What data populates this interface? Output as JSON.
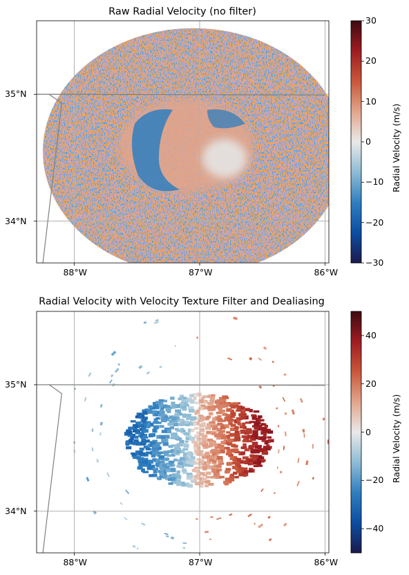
{
  "chart_data": [
    {
      "type": "heatmap",
      "title": "Raw Radial Velocity (no filter)",
      "x_ticks": [
        "88°W",
        "87°W",
        "86°W"
      ],
      "y_ticks": [
        "35°N",
        "34°N"
      ],
      "x_tick_values": [
        -88,
        -87,
        -86
      ],
      "y_tick_values": [
        35,
        34
      ],
      "xlim": [
        -88.3,
        -85.97
      ],
      "ylim": [
        33.67,
        35.58
      ],
      "colorbar": {
        "label": "Radial Velocity (m/s)",
        "range": [
          -30,
          30
        ],
        "ticks": [
          30,
          20,
          10,
          0,
          -10,
          -20,
          -30
        ],
        "tick_labels": [
          "30",
          "20",
          "10",
          "0",
          "−10",
          "−20",
          "−30"
        ]
      },
      "radar_center": [
        -87.05,
        34.55
      ],
      "noise_radius_deg": 1.2,
      "coherent_echo_radius_deg": 0.6,
      "grid": true
    },
    {
      "type": "heatmap",
      "title": "Radial Velocity with Velocity Texture Filter and Dealiasing",
      "x_ticks": [
        "88°W",
        "87°W",
        "86°W"
      ],
      "y_ticks": [
        "35°N",
        "34°N"
      ],
      "x_tick_values": [
        -88,
        -87,
        -86
      ],
      "y_tick_values": [
        35,
        34
      ],
      "xlim": [
        -88.3,
        -85.97
      ],
      "ylim": [
        33.67,
        35.58
      ],
      "colorbar": {
        "label": "Radial Velocity (m/s)",
        "range": [
          -50,
          50
        ],
        "ticks": [
          40,
          20,
          0,
          -20,
          -40
        ],
        "tick_labels": [
          "40",
          "20",
          "0",
          "−20",
          "−40"
        ]
      },
      "inbound_velocity_ms": -15,
      "outbound_velocity_ms": 25,
      "grid": true
    }
  ],
  "colormap": {
    "stops": [
      "#1a1a4d",
      "#0b4ea2",
      "#2f7fc0",
      "#8fbcd4",
      "#e9e9e9",
      "#e2a58c",
      "#c9573a",
      "#9e1c22",
      "#3d0a10"
    ]
  }
}
